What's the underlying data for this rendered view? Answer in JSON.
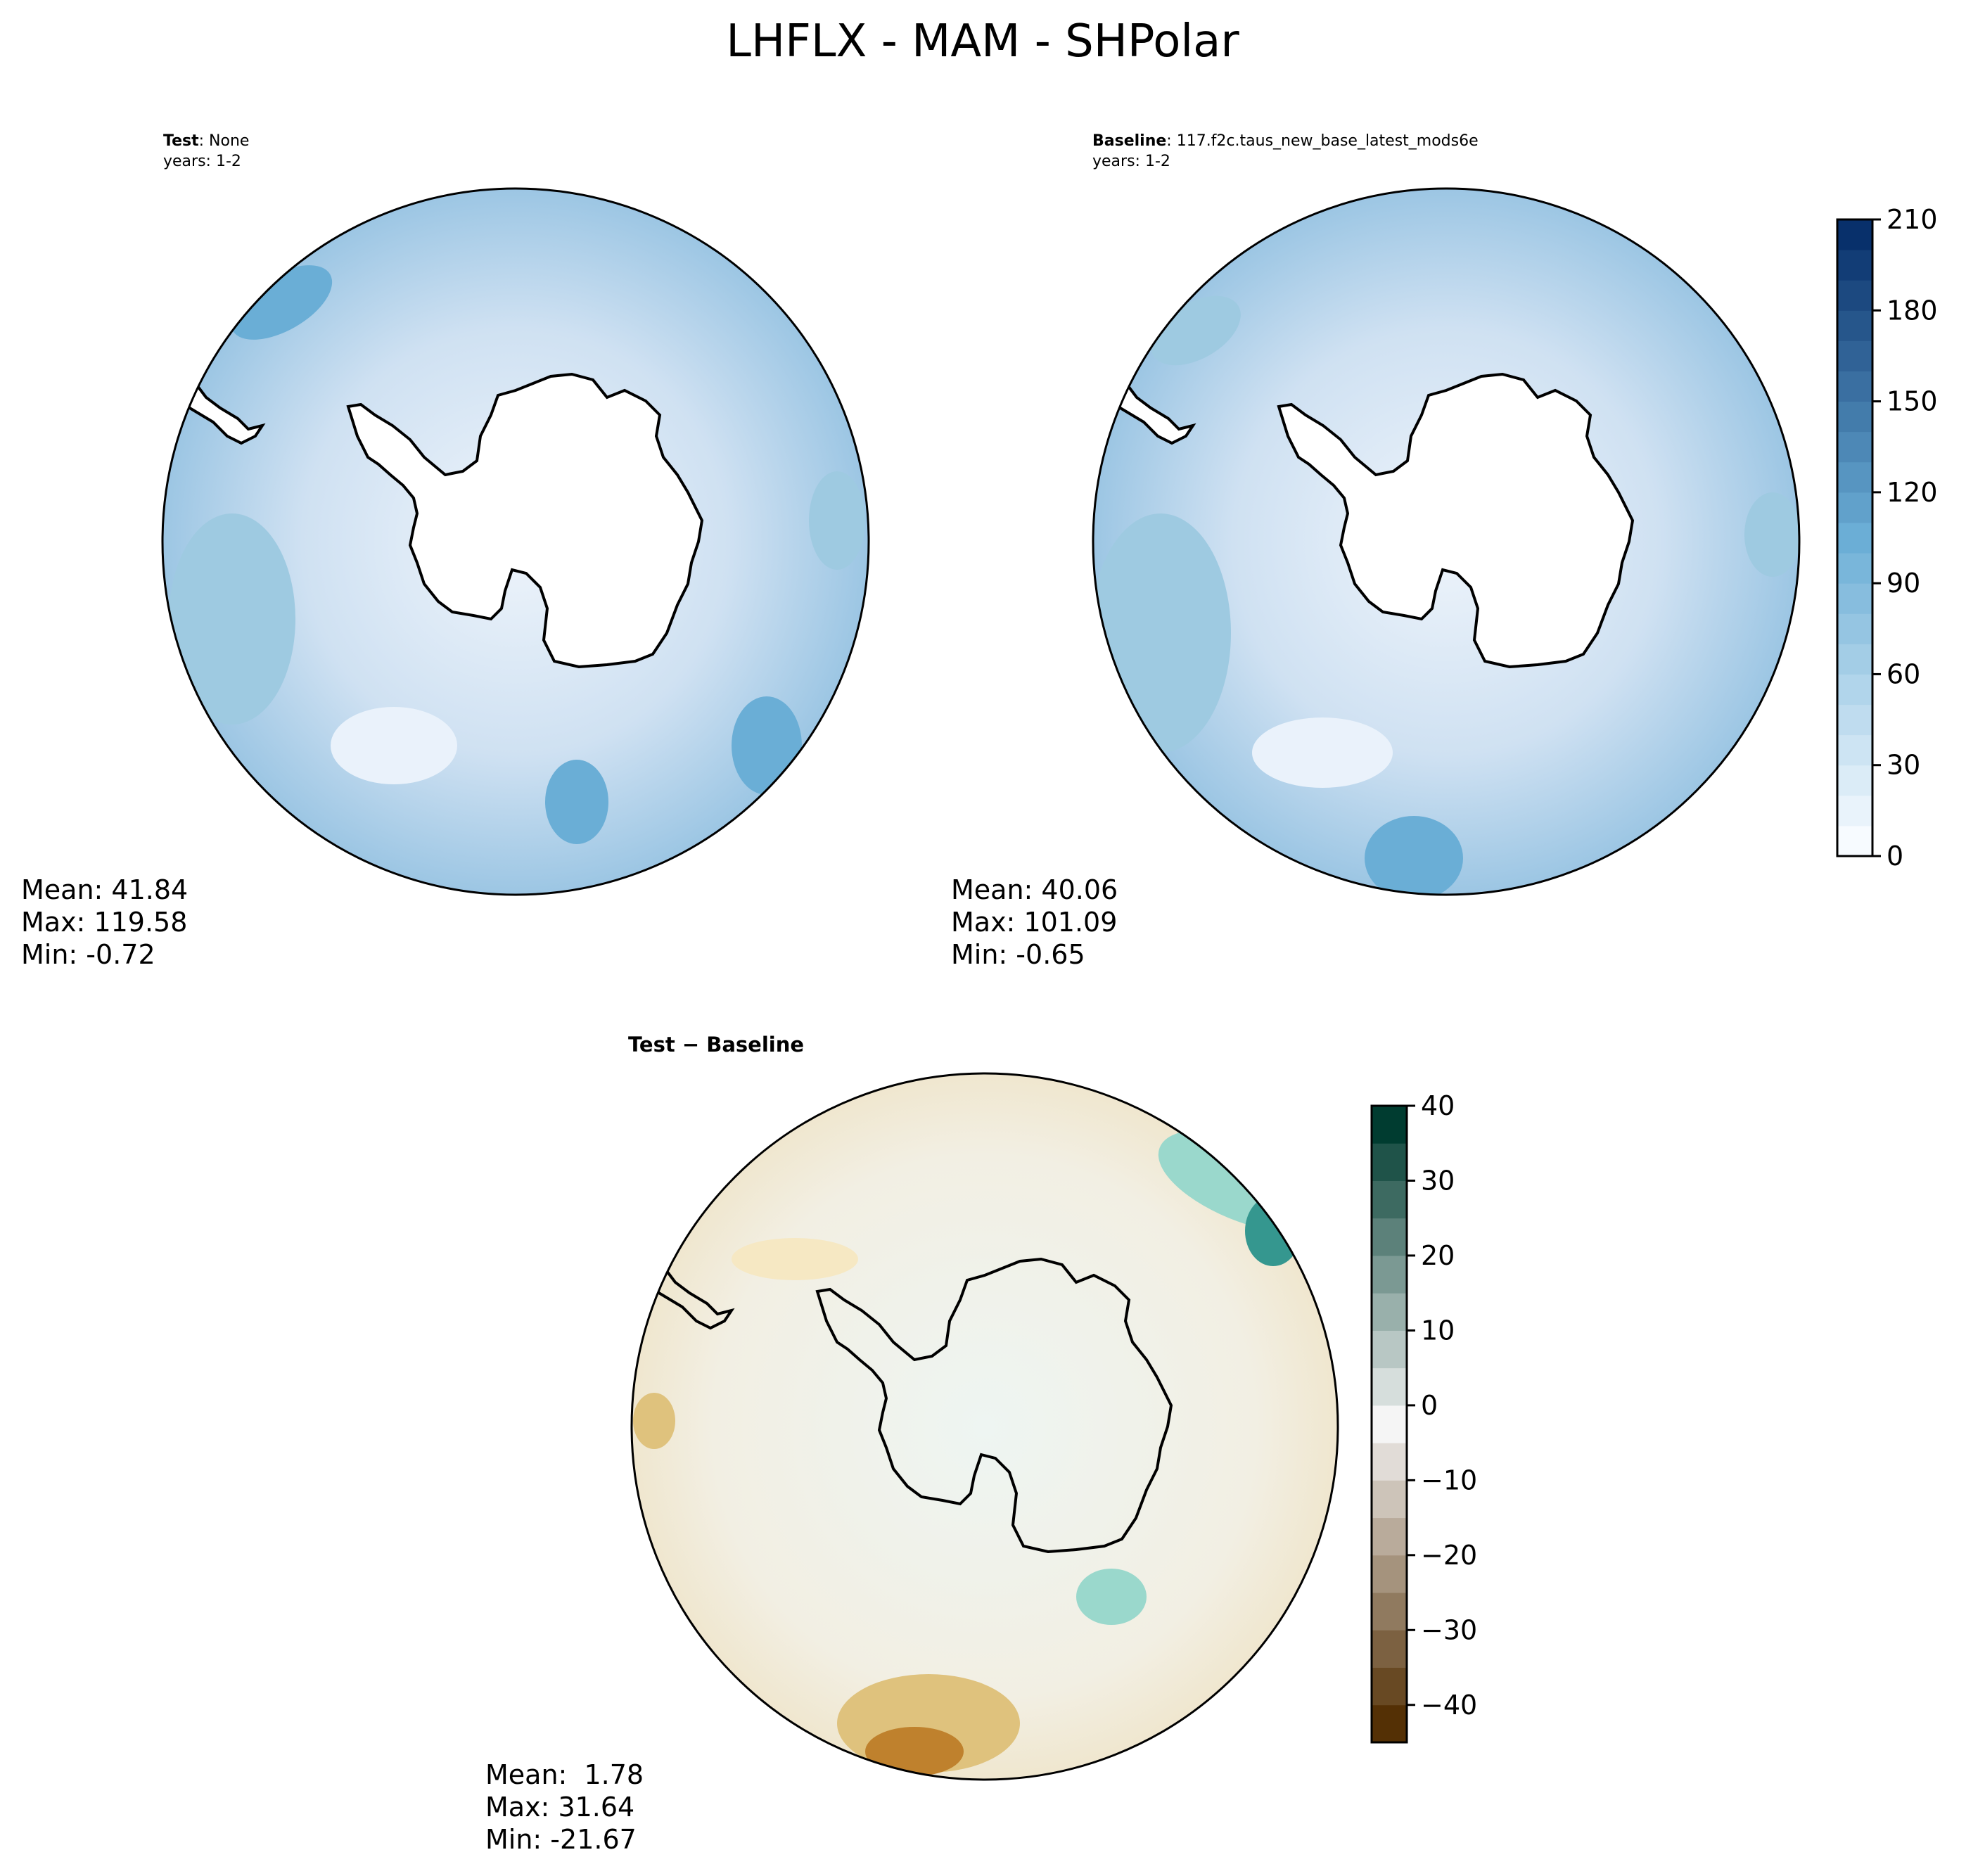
{
  "figure_title": "LHFLX - MAM - SHPolar",
  "panels": {
    "test": {
      "label_bold": "Test",
      "label_rest": ": None",
      "years": "years: 1-2",
      "stats": {
        "mean": "Mean: 41.84",
        "max": "Max: 119.58",
        "min": "Min: -0.72"
      }
    },
    "baseline": {
      "label_bold": "Baseline",
      "label_rest": ": 117.f2c.taus_new_base_latest_mods6e",
      "years": "years: 1-2",
      "stats": {
        "mean": "Mean: 40.06",
        "max": "Max: 101.09",
        "min": "Min: -0.65"
      }
    },
    "diff": {
      "title": "Test − Baseline",
      "stats": {
        "mean": "Mean:  1.78",
        "max": "Max: 31.64",
        "min": "Min: -21.67"
      }
    }
  },
  "colors": {
    "seq_low": "#f7fbff",
    "seq_high": "#08306b",
    "div_low": "#543005",
    "div_mid": "#f5f5f5",
    "div_high": "#003c30",
    "land": "#ffffff",
    "coast": "#000000"
  },
  "chart_data": [
    {
      "type": "heatmap",
      "name": "Test",
      "projection": "south-polar-stereographic",
      "mean": 41.84,
      "max": 119.58,
      "min": -0.72,
      "colormap": "Blues",
      "colorbar": {
        "ticks": [
          0,
          30,
          60,
          90,
          120,
          150,
          180,
          210
        ],
        "tick_labels": [
          "0",
          "30",
          "60",
          "90",
          "120",
          "150",
          "180",
          "210"
        ],
        "range": [
          0,
          210
        ],
        "n_levels": 21
      }
    },
    {
      "type": "heatmap",
      "name": "Baseline",
      "projection": "south-polar-stereographic",
      "mean": 40.06,
      "max": 101.09,
      "min": -0.65,
      "colormap": "Blues"
    },
    {
      "type": "heatmap",
      "name": "Test − Baseline",
      "projection": "south-polar-stereographic",
      "mean": 1.78,
      "max": 31.64,
      "min": -21.67,
      "colormap": "BrBG",
      "colorbar": {
        "ticks": [
          40,
          30,
          20,
          10,
          0,
          -10,
          -20,
          -30,
          -40
        ],
        "tick_labels": [
          "40",
          "30",
          "20",
          "10",
          "0",
          "−10",
          "−20",
          "−30",
          "−40"
        ],
        "range": [
          -45,
          40
        ],
        "n_levels": 17
      }
    }
  ]
}
